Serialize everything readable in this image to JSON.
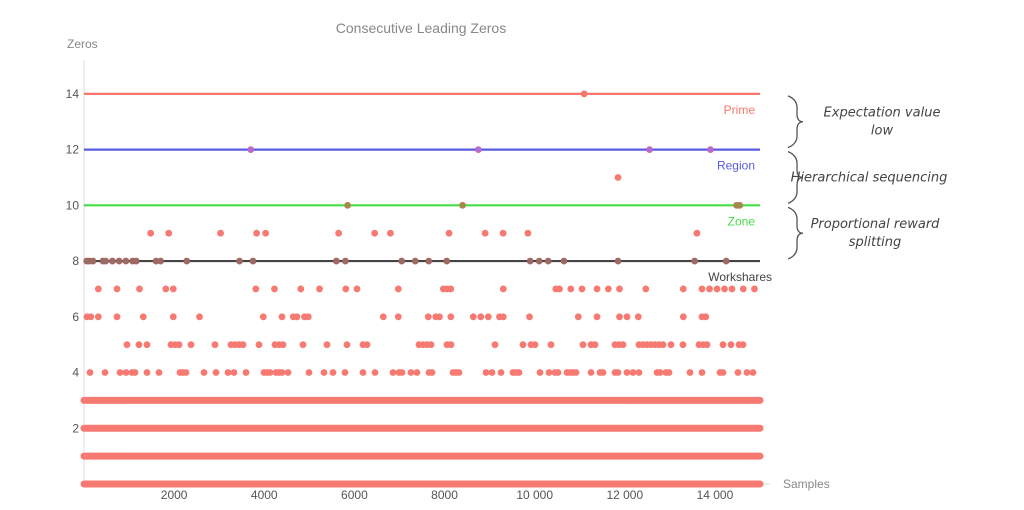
{
  "chart_data": {
    "type": "scatter",
    "title": "Consecutive Leading Zeros",
    "xlabel": "Samples",
    "ylabel": "Zeros",
    "xlim": [
      0,
      15000
    ],
    "ylim": [
      0,
      15
    ],
    "x_ticks": [
      2000,
      4000,
      6000,
      8000,
      10000,
      12000,
      14000
    ],
    "x_tick_labels": [
      "2000",
      "4000",
      "6000",
      "8000",
      "10 000",
      "12 000",
      "14 000"
    ],
    "y_ticks": [
      2,
      4,
      6,
      8,
      10,
      12,
      14
    ],
    "grid": false,
    "colors": {
      "points": "#f77a72",
      "prime": "#f5776c",
      "region": "#5a5be0",
      "zone": "#45dd45",
      "workshares": "#444444"
    },
    "reference_lines": [
      {
        "label": "Prime",
        "y": 14,
        "color": "#f5776c"
      },
      {
        "label": "Region",
        "y": 12,
        "color": "#5a5be0"
      },
      {
        "label": "Zone",
        "y": 10,
        "color": "#45dd45"
      },
      {
        "label": "Workshares",
        "y": 8,
        "color": "#444444"
      }
    ],
    "series": [
      {
        "y": 0,
        "x_range": [
          0,
          15000
        ],
        "density": "continuous"
      },
      {
        "y": 1,
        "x_range": [
          0,
          15000
        ],
        "density": "continuous"
      },
      {
        "y": 2,
        "x_range": [
          0,
          15000
        ],
        "density": "continuous"
      },
      {
        "y": 3,
        "x_range": [
          0,
          15000
        ],
        "density": "continuous"
      },
      {
        "y": 4,
        "x_range": [
          0,
          15000
        ],
        "density": "dense"
      },
      {
        "y": 5,
        "x_range": [
          0,
          15000
        ],
        "density": "medium"
      },
      {
        "y": 6,
        "x_range": [
          0,
          15000
        ],
        "density": "sparse"
      },
      {
        "y": 7,
        "x_range": [
          0,
          15000
        ],
        "density": "sparse"
      },
      {
        "y": 8,
        "x": [
          60,
          120,
          200,
          420,
          480,
          630,
          780,
          930,
          1080,
          1160,
          1600,
          1700,
          2280,
          3450,
          3750,
          5600,
          5800,
          7050,
          7350,
          7650,
          8050,
          9900,
          10100,
          10300,
          10650,
          11850,
          13550,
          14250
        ]
      },
      {
        "y": 9,
        "x": [
          1480,
          1880,
          3030,
          3830,
          4030,
          5650,
          6450,
          6800,
          8100,
          8900,
          9300,
          9850,
          13600
        ]
      },
      {
        "y": 10,
        "x": [
          5850,
          8400,
          14480,
          14550
        ]
      },
      {
        "y": 11,
        "x": [
          11850
        ]
      },
      {
        "y": 12,
        "x": [
          3700,
          8750,
          12550,
          13900
        ]
      },
      {
        "y": 14,
        "x": [
          11100
        ]
      }
    ],
    "annotations": [
      {
        "text_lines": [
          "Expectation value",
          "low"
        ],
        "span": [
          12,
          14
        ]
      },
      {
        "text_lines": [
          "Hierarchical sequencing"
        ],
        "span": [
          10,
          12
        ]
      },
      {
        "text_lines": [
          "Proportional reward",
          "splitting"
        ],
        "span": [
          8,
          10
        ]
      }
    ]
  }
}
